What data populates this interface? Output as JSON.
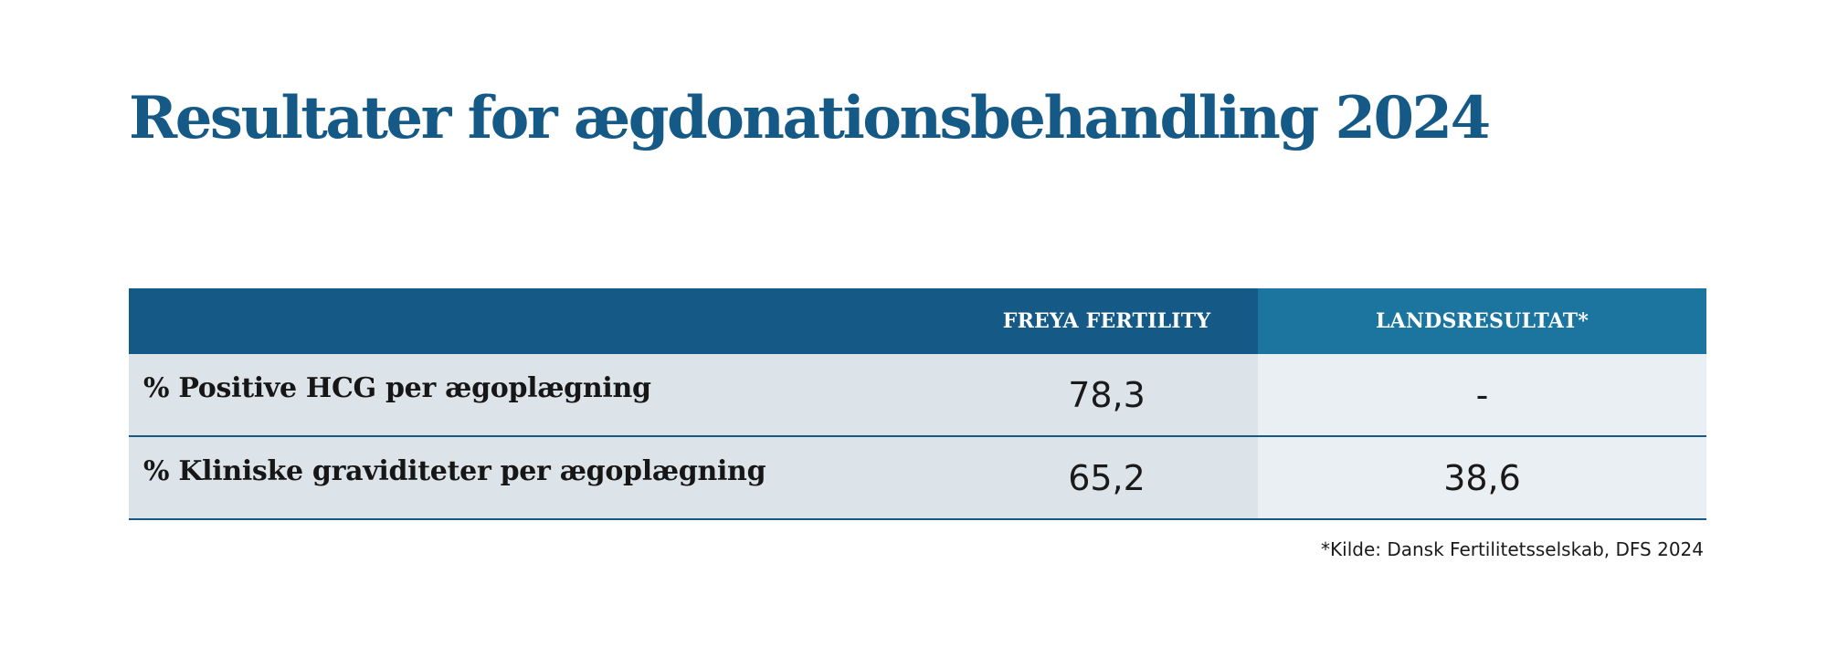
{
  "chart_data": {
    "type": "table",
    "title": "Resultater for ægdonationsbehandling 2024",
    "columns": [
      "",
      "FREYA FERTILITY",
      "LANDSRESULTAT*"
    ],
    "rows": [
      {
        "label": "% Positive HCG per ægoplægning",
        "values": [
          "78,3",
          "-"
        ]
      },
      {
        "label": "% Kliniske graviditeter per ægoplægning",
        "values": [
          "65,2",
          "38,6"
        ]
      }
    ],
    "source": "*Kilde: Dansk Fertilitetsselskab, DFS 2024"
  },
  "colors": {
    "title": "#155A86",
    "header_primary": "#155A86",
    "header_secondary": "#1B759F",
    "row_primary": "#DCE3E9",
    "row_secondary": "#E9EFF2",
    "divider": "#155A86"
  }
}
